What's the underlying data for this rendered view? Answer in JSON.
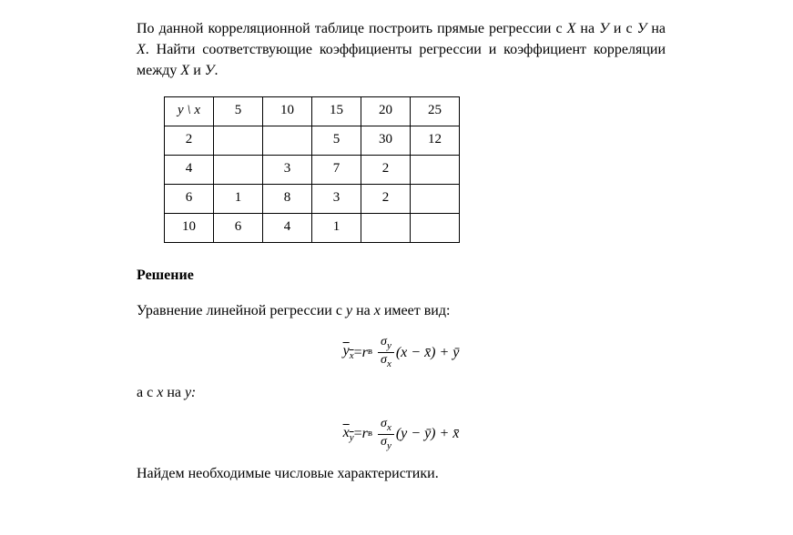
{
  "intro": {
    "part1": "По данной корреляционной таблице построить прямые регрессии с ",
    "X1": "X",
    "part2": " на ",
    "Y1": "У",
    "part3": " и с ",
    "Y2": "У",
    "part4": " на ",
    "X2": "Х",
    "part5": ". Найти соответствующие коэффициенты регрессии и коэффициент корреляции между ",
    "X3": "Х",
    "part6": " и ",
    "Y3": "У",
    "part7": "."
  },
  "table": {
    "header_label": "у \\ х",
    "x_values": [
      "5",
      "10",
      "15",
      "20",
      "25"
    ],
    "rows": [
      {
        "y": "2",
        "cells": [
          "",
          "",
          "5",
          "30",
          "12"
        ]
      },
      {
        "y": "4",
        "cells": [
          "",
          "3",
          "7",
          "2",
          ""
        ]
      },
      {
        "y": "6",
        "cells": [
          "1",
          "8",
          "3",
          "2",
          ""
        ]
      },
      {
        "y": "10",
        "cells": [
          "6",
          "4",
          "1",
          "",
          ""
        ]
      }
    ]
  },
  "solution_title": "Решение",
  "eq_intro1_a": "Уравнение линейной регрессии с ",
  "eq_intro1_y": "у",
  "eq_intro1_b": " на ",
  "eq_intro1_x": "х",
  "eq_intro1_c": " имеет вид:",
  "formula1": {
    "lhs_base": "y",
    "lhs_sub": "x",
    "eq": " = ",
    "r": "r",
    "r_sub": "в",
    "frac_num_base": "σ",
    "frac_num_sub": "y",
    "frac_den_base": "σ",
    "frac_den_sub": "x",
    "after": " (x − x̄) + ȳ"
  },
  "eq_intro2_a": "а с ",
  "eq_intro2_x": "х",
  "eq_intro2_b": " на ",
  "eq_intro2_y": "у",
  "eq_intro2_c": ":",
  "formula2": {
    "lhs_base": "x",
    "lhs_sub": "y",
    "eq": " = ",
    "r": "r",
    "r_sub": "в",
    "frac_num_base": "σ",
    "frac_num_sub": "x",
    "frac_den_base": "σ",
    "frac_den_sub": "y",
    "after": " (y − ȳ) + x̄"
  },
  "footer": "Найдем необходимые числовые характеристики."
}
